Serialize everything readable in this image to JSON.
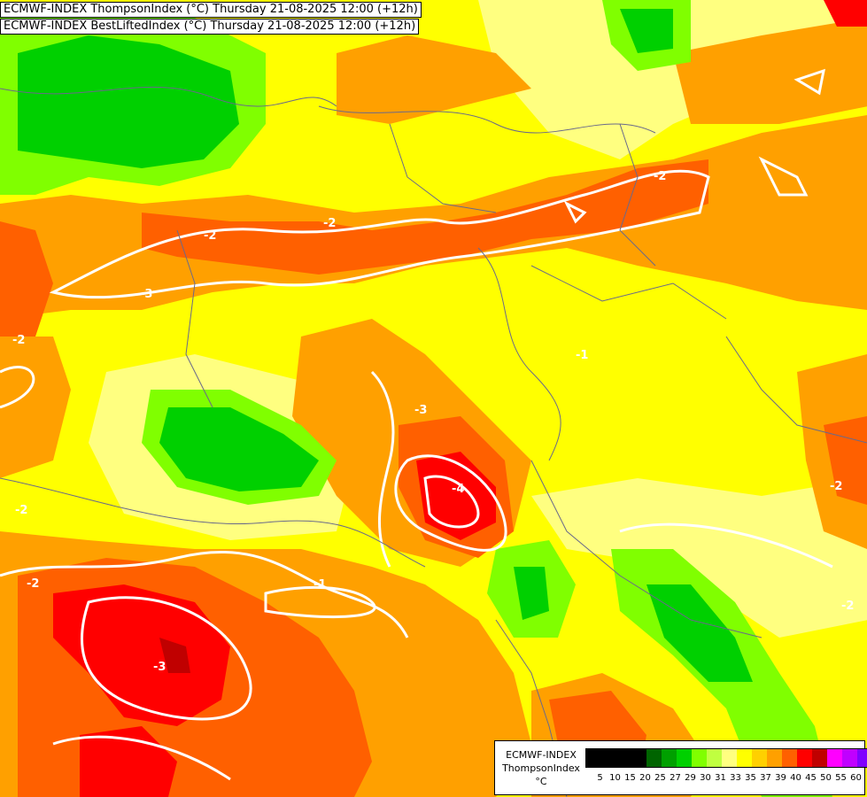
{
  "header": {
    "line1": "ECMWF-INDEX ThompsonIndex (°C) Thursday 21-08-2025 12:00 (+12h)",
    "line2": "ECMWF-INDEX BestLiftedIndex (°C) Thursday 21-08-2025 12:00 (+12h)"
  },
  "legend": {
    "model": "ECMWF-INDEX",
    "parameter": "ThompsonIndex",
    "unit": "°C",
    "ticks": [
      "5",
      "10",
      "15",
      "20",
      "25",
      "27",
      "29",
      "30",
      "31",
      "33",
      "35",
      "37",
      "39",
      "40",
      "45",
      "50",
      "55",
      "60"
    ],
    "colors": [
      "#000000",
      "#000000",
      "#000000",
      "#000000",
      "#006400",
      "#00a000",
      "#00d000",
      "#80ff00",
      "#c0ff40",
      "#ffff80",
      "#ffff00",
      "#ffd000",
      "#ffa000",
      "#ff6000",
      "#ff0000",
      "#c00000",
      "#ff00ff",
      "#c000ff",
      "#8000ff",
      "#0000ff"
    ]
  },
  "contour_labels": [
    "-2",
    "-2",
    "-3",
    "-2",
    "-2",
    "-2",
    "-3",
    "-4",
    "-1",
    "-2",
    "-3",
    "-2",
    "-2",
    "-1"
  ]
}
